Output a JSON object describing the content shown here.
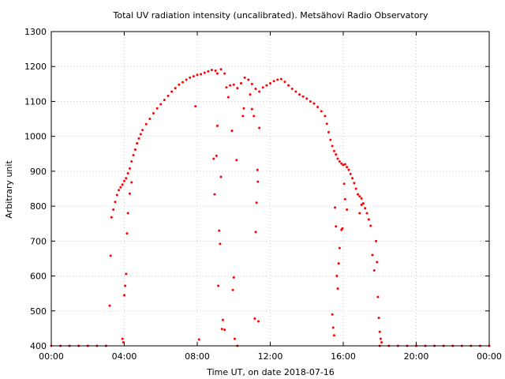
{
  "chart_data": {
    "type": "scatter",
    "title": "Total UV radiation intensity (uncalibrated). Metsähovi Radio Observatory",
    "xlabel": "Time UT, on date 2018-07-16",
    "ylabel": "Arbitrary unit",
    "xlim": [
      0,
      24
    ],
    "ylim": [
      400,
      1300
    ],
    "grid": true,
    "point_color": "#ff0000",
    "x_ticks": [
      {
        "value": 0,
        "label": "00:00"
      },
      {
        "value": 4,
        "label": "04:00"
      },
      {
        "value": 8,
        "label": "08:00"
      },
      {
        "value": 12,
        "label": "12:00"
      },
      {
        "value": 16,
        "label": "16:00"
      },
      {
        "value": 20,
        "label": "20:00"
      },
      {
        "value": 24,
        "label": "00:00"
      }
    ],
    "y_ticks": [
      400,
      500,
      600,
      700,
      800,
      900,
      1000,
      1100,
      1200,
      1300
    ],
    "series": [
      {
        "points": [
          [
            0.0,
            400
          ],
          [
            0.5,
            400
          ],
          [
            1.0,
            400
          ],
          [
            1.5,
            400
          ],
          [
            2.0,
            400
          ],
          [
            2.5,
            400
          ],
          [
            3.0,
            400
          ],
          [
            3.3,
            768
          ],
          [
            3.4,
            790
          ],
          [
            3.5,
            812
          ],
          [
            3.6,
            832
          ],
          [
            3.7,
            846
          ],
          [
            3.8,
            854
          ],
          [
            3.9,
            862
          ],
          [
            4.0,
            872
          ],
          [
            4.1,
            880
          ],
          [
            4.2,
            894
          ],
          [
            4.3,
            908
          ],
          [
            4.4,
            928
          ],
          [
            4.5,
            946
          ],
          [
            4.6,
            962
          ],
          [
            4.7,
            980
          ],
          [
            4.8,
            994
          ],
          [
            4.9,
            1006
          ],
          [
            5.0,
            1018
          ],
          [
            5.2,
            1035
          ],
          [
            5.4,
            1050
          ],
          [
            5.6,
            1066
          ],
          [
            5.8,
            1080
          ],
          [
            6.0,
            1092
          ],
          [
            6.2,
            1104
          ],
          [
            6.4,
            1116
          ],
          [
            6.6,
            1128
          ],
          [
            6.8,
            1138
          ],
          [
            7.0,
            1148
          ],
          [
            7.2,
            1155
          ],
          [
            7.4,
            1162
          ],
          [
            7.6,
            1168
          ],
          [
            7.8,
            1172
          ],
          [
            8.0,
            1176
          ],
          [
            8.2,
            1178
          ],
          [
            8.4,
            1182
          ],
          [
            8.6,
            1186
          ],
          [
            8.8,
            1190
          ],
          [
            9.0,
            1188
          ],
          [
            9.1,
            1180
          ],
          [
            9.3,
            1192
          ],
          [
            9.5,
            1180
          ],
          [
            9.6,
            1140
          ],
          [
            9.7,
            1112
          ],
          [
            9.8,
            1146
          ],
          [
            10.0,
            1148
          ],
          [
            10.2,
            1138
          ],
          [
            10.4,
            1152
          ],
          [
            10.6,
            1168
          ],
          [
            10.8,
            1162
          ],
          [
            11.0,
            1150
          ],
          [
            11.2,
            1136
          ],
          [
            11.4,
            1128
          ],
          [
            11.6,
            1140
          ],
          [
            11.8,
            1146
          ],
          [
            12.0,
            1152
          ],
          [
            12.2,
            1158
          ],
          [
            12.4,
            1162
          ],
          [
            12.6,
            1164
          ],
          [
            12.8,
            1156
          ],
          [
            13.0,
            1146
          ],
          [
            13.2,
            1136
          ],
          [
            13.4,
            1128
          ],
          [
            13.6,
            1120
          ],
          [
            13.8,
            1114
          ],
          [
            14.0,
            1108
          ],
          [
            14.2,
            1100
          ],
          [
            14.4,
            1094
          ],
          [
            14.6,
            1084
          ],
          [
            14.8,
            1072
          ],
          [
            15.0,
            1058
          ],
          [
            15.1,
            1036
          ],
          [
            15.2,
            1012
          ],
          [
            15.3,
            990
          ],
          [
            15.4,
            972
          ],
          [
            15.5,
            958
          ],
          [
            15.6,
            948
          ],
          [
            15.7,
            936
          ],
          [
            15.8,
            928
          ],
          [
            15.9,
            922
          ],
          [
            16.0,
            918
          ],
          [
            16.1,
            920
          ],
          [
            16.2,
            912
          ],
          [
            16.3,
            904
          ],
          [
            16.4,
            892
          ],
          [
            16.5,
            880
          ],
          [
            16.6,
            866
          ],
          [
            16.7,
            850
          ],
          [
            16.8,
            834
          ],
          [
            16.9,
            828
          ],
          [
            17.0,
            822
          ],
          [
            17.1,
            808
          ],
          [
            17.2,
            794
          ],
          [
            17.3,
            780
          ],
          [
            17.4,
            762
          ],
          [
            17.5,
            744
          ],
          [
            18.0,
            400
          ],
          [
            18.5,
            400
          ],
          [
            19.0,
            400
          ],
          [
            19.5,
            400
          ],
          [
            20.0,
            400
          ],
          [
            20.5,
            400
          ],
          [
            21.0,
            400
          ],
          [
            21.5,
            400
          ],
          [
            22.0,
            400
          ],
          [
            22.5,
            400
          ],
          [
            23.0,
            400
          ],
          [
            23.5,
            400
          ],
          [
            24.0,
            400
          ],
          [
            3.2,
            515
          ],
          [
            3.25,
            658
          ],
          [
            3.9,
            420
          ],
          [
            3.95,
            410
          ],
          [
            4.0,
            545
          ],
          [
            4.05,
            572
          ],
          [
            4.1,
            606
          ],
          [
            4.15,
            722
          ],
          [
            4.2,
            780
          ],
          [
            4.3,
            836
          ],
          [
            4.4,
            868
          ],
          [
            7.9,
            1086
          ],
          [
            8.1,
            418
          ],
          [
            8.9,
            936
          ],
          [
            8.95,
            834
          ],
          [
            9.05,
            944
          ],
          [
            9.1,
            1030
          ],
          [
            9.15,
            572
          ],
          [
            9.2,
            730
          ],
          [
            9.25,
            692
          ],
          [
            9.3,
            884
          ],
          [
            9.35,
            448
          ],
          [
            9.4,
            474
          ],
          [
            9.5,
            446
          ],
          [
            9.9,
            1016
          ],
          [
            9.95,
            560
          ],
          [
            10.0,
            596
          ],
          [
            10.05,
            420
          ],
          [
            10.15,
            932
          ],
          [
            10.2,
            400
          ],
          [
            10.5,
            1058
          ],
          [
            10.55,
            1080
          ],
          [
            10.9,
            1120
          ],
          [
            11.0,
            1078
          ],
          [
            11.1,
            1058
          ],
          [
            11.15,
            478
          ],
          [
            11.2,
            726
          ],
          [
            11.25,
            810
          ],
          [
            11.3,
            904
          ],
          [
            11.32,
            870
          ],
          [
            11.35,
            470
          ],
          [
            11.4,
            1024
          ],
          [
            15.4,
            490
          ],
          [
            15.45,
            452
          ],
          [
            15.5,
            430
          ],
          [
            15.55,
            796
          ],
          [
            15.6,
            742
          ],
          [
            15.65,
            600
          ],
          [
            15.7,
            564
          ],
          [
            15.75,
            636
          ],
          [
            15.8,
            680
          ],
          [
            15.9,
            732
          ],
          [
            15.95,
            736
          ],
          [
            16.05,
            864
          ],
          [
            16.1,
            820
          ],
          [
            16.2,
            790
          ],
          [
            16.9,
            780
          ],
          [
            17.0,
            804
          ],
          [
            17.6,
            660
          ],
          [
            17.7,
            616
          ],
          [
            17.8,
            700
          ],
          [
            17.85,
            640
          ],
          [
            17.9,
            540
          ],
          [
            17.95,
            480
          ],
          [
            18.0,
            440
          ],
          [
            18.05,
            420
          ],
          [
            18.1,
            410
          ]
        ]
      }
    ]
  }
}
